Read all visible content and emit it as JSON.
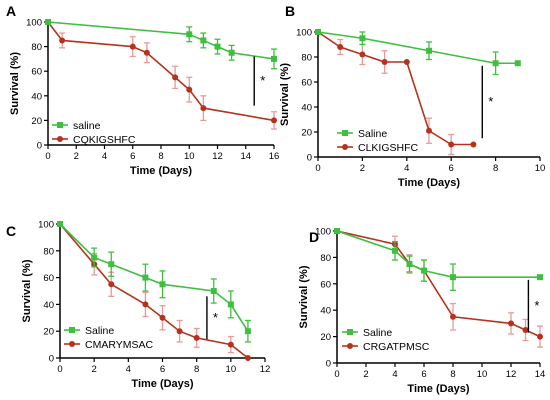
{
  "colors": {
    "green": "#3fbf3f",
    "red": "#b5321e",
    "errorRed": "#e89a9a",
    "axis": "#000000"
  },
  "chart_data": [
    {
      "panel": "A",
      "type": "line",
      "xlabel": "Time (Days)",
      "ylabel": "Survival (%)",
      "xlim": [
        0,
        16
      ],
      "ylim": [
        0,
        100
      ],
      "xticks": [
        0,
        2,
        4,
        6,
        8,
        10,
        12,
        14,
        16
      ],
      "yticks": [
        0,
        20,
        40,
        60,
        80,
        100
      ],
      "significance": {
        "label": "*",
        "x": 14.6,
        "y_range": [
          32,
          72
        ]
      },
      "legend_position": "bottom-left",
      "series": [
        {
          "name": "saline",
          "color": "green",
          "marker": "square",
          "x": [
            0,
            10,
            11,
            12,
            13,
            16
          ],
          "y": [
            100,
            90,
            85,
            80,
            75,
            70
          ],
          "err": [
            0,
            6,
            6,
            6,
            6,
            8
          ]
        },
        {
          "name": "CQKIGSHFC",
          "color": "red",
          "marker": "circle",
          "x": [
            0,
            1,
            6,
            7,
            9,
            10,
            11,
            16
          ],
          "y": [
            100,
            85,
            80,
            75,
            55,
            45,
            30,
            20
          ],
          "err": [
            0,
            6,
            8,
            8,
            9,
            10,
            10,
            7
          ]
        }
      ]
    },
    {
      "panel": "B",
      "type": "line",
      "xlabel": "Time (Days)",
      "ylabel": "Survival (%)",
      "xlim": [
        0,
        10
      ],
      "ylim": [
        0,
        100
      ],
      "xticks": [
        0,
        2,
        4,
        6,
        8,
        10
      ],
      "yticks": [
        0,
        20,
        40,
        60,
        80,
        100
      ],
      "significance": {
        "label": "*",
        "x": 7.4,
        "y_range": [
          15,
          73
        ]
      },
      "legend_position": "bottom-left",
      "series": [
        {
          "name": "Saline",
          "color": "green",
          "marker": "square",
          "x": [
            0,
            2,
            5,
            8,
            9
          ],
          "y": [
            100,
            95,
            85,
            75,
            75
          ],
          "err": [
            0,
            5,
            7,
            9,
            0
          ]
        },
        {
          "name": "CLKIGSHFC",
          "color": "red",
          "marker": "circle",
          "x": [
            0,
            1,
            2,
            3,
            4,
            5,
            6,
            7
          ],
          "y": [
            100,
            88,
            82,
            76,
            76,
            21,
            10,
            10
          ],
          "err": [
            0,
            6,
            8,
            9,
            0,
            10,
            8,
            0
          ]
        }
      ]
    },
    {
      "panel": "C",
      "type": "line",
      "xlabel": "Time (Days)",
      "ylabel": "Survival (%)",
      "xlim": [
        0,
        12
      ],
      "ylim": [
        0,
        100
      ],
      "xticks": [
        0,
        2,
        4,
        6,
        8,
        10,
        12
      ],
      "yticks": [
        0,
        20,
        40,
        60,
        80,
        100
      ],
      "significance": {
        "label": "*",
        "x": 8.6,
        "y_range": [
          14,
          46
        ]
      },
      "legend_position": "bottom-left",
      "series": [
        {
          "name": "Saline",
          "color": "green",
          "marker": "square",
          "x": [
            0,
            2,
            3,
            5,
            6,
            9,
            10,
            11
          ],
          "y": [
            100,
            75,
            70,
            60,
            55,
            50,
            40,
            20
          ],
          "err": [
            0,
            7,
            9,
            10,
            10,
            9,
            10,
            8
          ]
        },
        {
          "name": "CMARYMSAC",
          "color": "red",
          "marker": "circle",
          "x": [
            0,
            2,
            3,
            5,
            6,
            7,
            8,
            10,
            11
          ],
          "y": [
            100,
            70,
            55,
            40,
            30,
            20,
            15,
            10,
            0
          ],
          "err": [
            0,
            8,
            9,
            9,
            9,
            8,
            7,
            6,
            0
          ]
        }
      ]
    },
    {
      "panel": "D",
      "type": "line",
      "xlabel": "Time (Days)",
      "ylabel": "Survival (%)",
      "xlim": [
        0,
        14
      ],
      "ylim": [
        0,
        100
      ],
      "xticks": [
        0,
        2,
        4,
        6,
        8,
        10,
        12,
        14
      ],
      "yticks": [
        0,
        20,
        40,
        60,
        80,
        100
      ],
      "significance": {
        "label": "*",
        "x": 13.2,
        "y_range": [
          23,
          63
        ]
      },
      "legend_position": "bottom-left",
      "series": [
        {
          "name": "Saline",
          "color": "green",
          "marker": "square",
          "x": [
            0,
            4,
            5,
            6,
            8,
            14
          ],
          "y": [
            100,
            85,
            75,
            70,
            65,
            65
          ],
          "err": [
            0,
            7,
            6,
            8,
            10,
            0
          ]
        },
        {
          "name": "CRGATPMSC",
          "color": "red",
          "marker": "circle",
          "x": [
            0,
            4,
            5,
            6,
            8,
            12,
            13,
            14
          ],
          "y": [
            100,
            90,
            75,
            70,
            35,
            30,
            25,
            20
          ],
          "err": [
            0,
            6,
            7,
            8,
            10,
            8,
            8,
            8
          ]
        }
      ]
    }
  ]
}
